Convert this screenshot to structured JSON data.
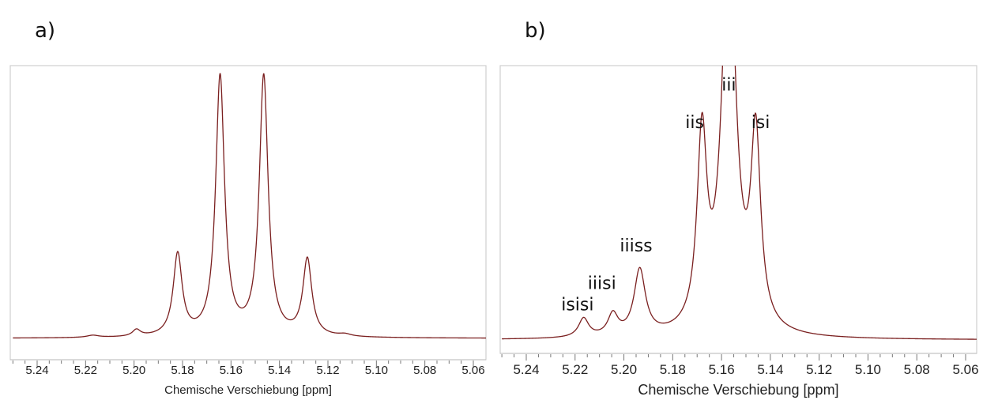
{
  "panels": {
    "a": {
      "label": "a)"
    },
    "b": {
      "label": "b)"
    }
  },
  "chart_data": [
    {
      "type": "line",
      "title": "",
      "xlabel": "Chemische Verschiebung [ppm]",
      "ylabel": "",
      "xlim": [
        5.25,
        5.05
      ],
      "x_reversed": true,
      "grid": false,
      "ticks": [
        "5.24",
        "5.22",
        "5.20",
        "5.18",
        "5.16",
        "5.14",
        "5.12",
        "5.10",
        "5.08",
        "5.06"
      ],
      "baseline": 0.0,
      "ylim": [
        -0.02,
        1.0
      ],
      "color": "#7a1f1f",
      "peaks": [
        {
          "x": 5.182,
          "height": 0.31,
          "width": 0.0022
        },
        {
          "x": 5.1645,
          "height": 0.985,
          "width": 0.0022
        },
        {
          "x": 5.1465,
          "height": 0.985,
          "width": 0.0022
        },
        {
          "x": 5.1285,
          "height": 0.29,
          "width": 0.0022
        },
        {
          "x": 5.199,
          "height": 0.025,
          "width": 0.002
        },
        {
          "x": 5.217,
          "height": 0.008,
          "width": 0.003
        },
        {
          "x": 5.113,
          "height": 0.008,
          "width": 0.003
        }
      ]
    },
    {
      "type": "line",
      "title": "",
      "xlabel": "Chemische Verschiebung [ppm]",
      "ylabel": "",
      "xlim": [
        5.25,
        5.05
      ],
      "x_reversed": true,
      "grid": false,
      "ticks": [
        "5.24",
        "5.22",
        "5.20",
        "5.18",
        "5.16",
        "5.14",
        "5.12",
        "5.10",
        "5.08",
        "5.06"
      ],
      "baseline": 0.0,
      "ylim": [
        -0.02,
        1.0
      ],
      "color": "#7a1f1f",
      "peaks": [
        {
          "x": 5.2165,
          "height": 0.07,
          "width": 0.0025
        },
        {
          "x": 5.2045,
          "height": 0.08,
          "width": 0.0025
        },
        {
          "x": 5.1935,
          "height": 0.245,
          "width": 0.0028
        },
        {
          "x": 5.168,
          "height": 0.705,
          "width": 0.0024
        },
        {
          "x": 5.157,
          "height": 1.5,
          "width": 0.0034
        },
        {
          "x": 5.146,
          "height": 0.705,
          "width": 0.0024
        }
      ],
      "annotations": [
        {
          "text": "isisi",
          "x": 5.219,
          "y": 0.11
        },
        {
          "text": "iiisi",
          "x": 5.209,
          "y": 0.19
        },
        {
          "text": "iiiss",
          "x": 5.195,
          "y": 0.33
        },
        {
          "text": "iis",
          "x": 5.171,
          "y": 0.79
        },
        {
          "text": "iii",
          "x": 5.157,
          "y": 0.93
        },
        {
          "text": "isi",
          "x": 5.144,
          "y": 0.79
        }
      ]
    }
  ]
}
